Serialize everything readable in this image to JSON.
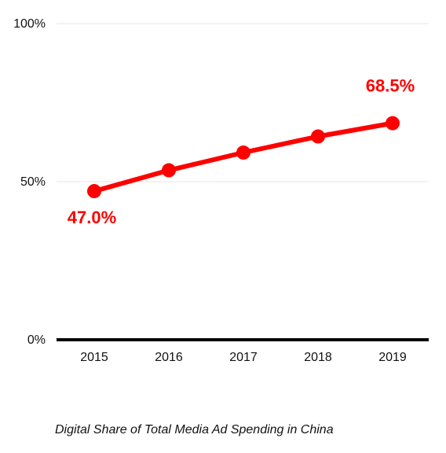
{
  "chart_data": {
    "type": "line",
    "title": "",
    "caption": "Digital Share of Total Media Ad Spending in China",
    "xlabel": "",
    "ylabel": "",
    "x": [
      "2015",
      "2016",
      "2017",
      "2018",
      "2019"
    ],
    "series": [
      {
        "name": "",
        "values": [
          47.0,
          53.6,
          59.2,
          64.3,
          68.5
        ],
        "color": "#ff0000"
      }
    ],
    "ylim": [
      0,
      100
    ],
    "y_ticks": [
      {
        "value": 0,
        "label": "0%"
      },
      {
        "value": 50,
        "label": "50%"
      },
      {
        "value": 100,
        "label": "100%"
      }
    ],
    "data_labels": [
      {
        "index": 0,
        "text": "47.0%",
        "placement": "below"
      },
      {
        "index": 4,
        "text": "68.5%",
        "placement": "above"
      }
    ],
    "grid": true,
    "gridline_color": "#e6e6e6",
    "axis_color": "#000000"
  }
}
